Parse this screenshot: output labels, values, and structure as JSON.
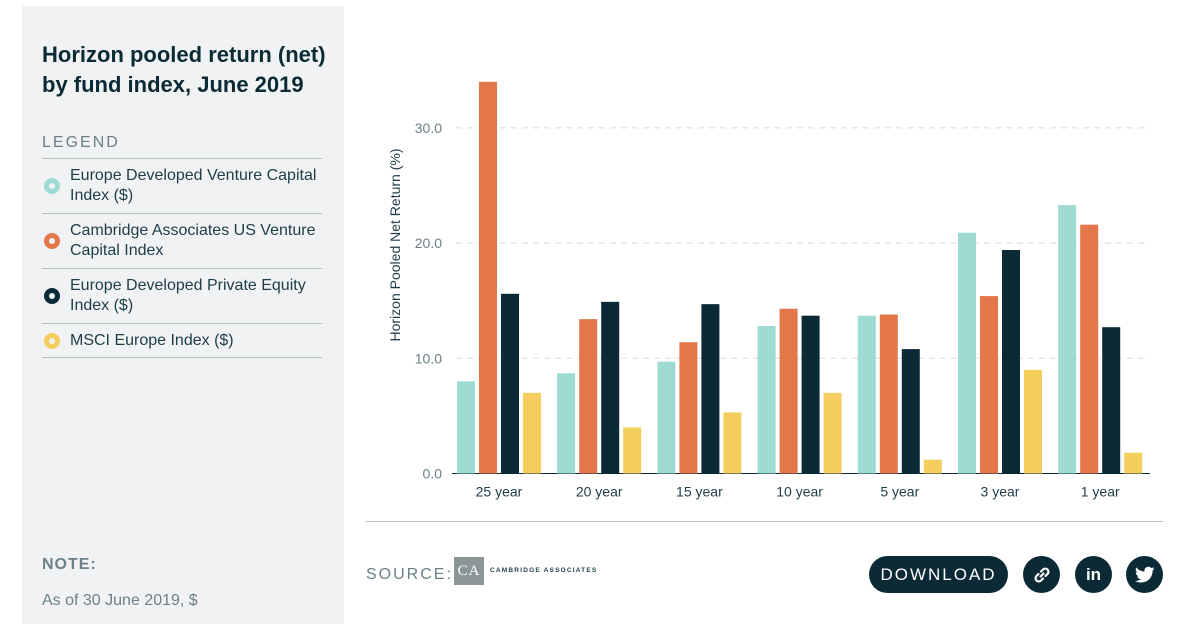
{
  "sidebar": {
    "title": "Horizon pooled return (net) by fund index, June 2019",
    "legend_heading": "LEGEND",
    "note_heading": "NOTE:",
    "note_text": "As of 30 June 2019, $"
  },
  "footer": {
    "source_label": "SOURCE:",
    "logo_initials": "CA",
    "logo_name": "CAMBRIDGE ASSOCIATES",
    "download_label": "DOWNLOAD",
    "icons": [
      "link-icon",
      "linkedin-icon",
      "twitter-icon"
    ]
  },
  "chart_data": {
    "type": "bar",
    "title": "Horizon pooled return (net) by fund index, June 2019",
    "xlabel": "",
    "ylabel": "Horizon Pooled Net Return (%)",
    "ylim": [
      0,
      35
    ],
    "yticks": [
      "0.0",
      "10.0",
      "20.0",
      "30.0"
    ],
    "grid": true,
    "legend_position": "left sidebar",
    "categories": [
      "25 year",
      "20 year",
      "15 year",
      "10 year",
      "5 year",
      "3 year",
      "1 year"
    ],
    "series": [
      {
        "name": "Europe Developed Venture Capital Index ($)",
        "color": "#9ddbd3",
        "values": [
          8.0,
          8.7,
          9.7,
          12.8,
          13.7,
          20.9,
          23.3
        ]
      },
      {
        "name": "Cambridge Associates US Venture Capital Index",
        "color": "#e3774a",
        "values": [
          34.0,
          13.4,
          11.4,
          14.3,
          13.8,
          15.4,
          21.6
        ]
      },
      {
        "name": "Europe Developed Private Equity Index ($)",
        "color": "#0b2a36",
        "values": [
          15.6,
          14.9,
          14.7,
          13.7,
          10.8,
          19.4,
          12.7
        ]
      },
      {
        "name": "MSCI Europe Index ($)",
        "color": "#f4cf5e",
        "values": [
          7.0,
          4.0,
          5.3,
          7.0,
          1.2,
          9.0,
          1.8
        ]
      }
    ]
  }
}
